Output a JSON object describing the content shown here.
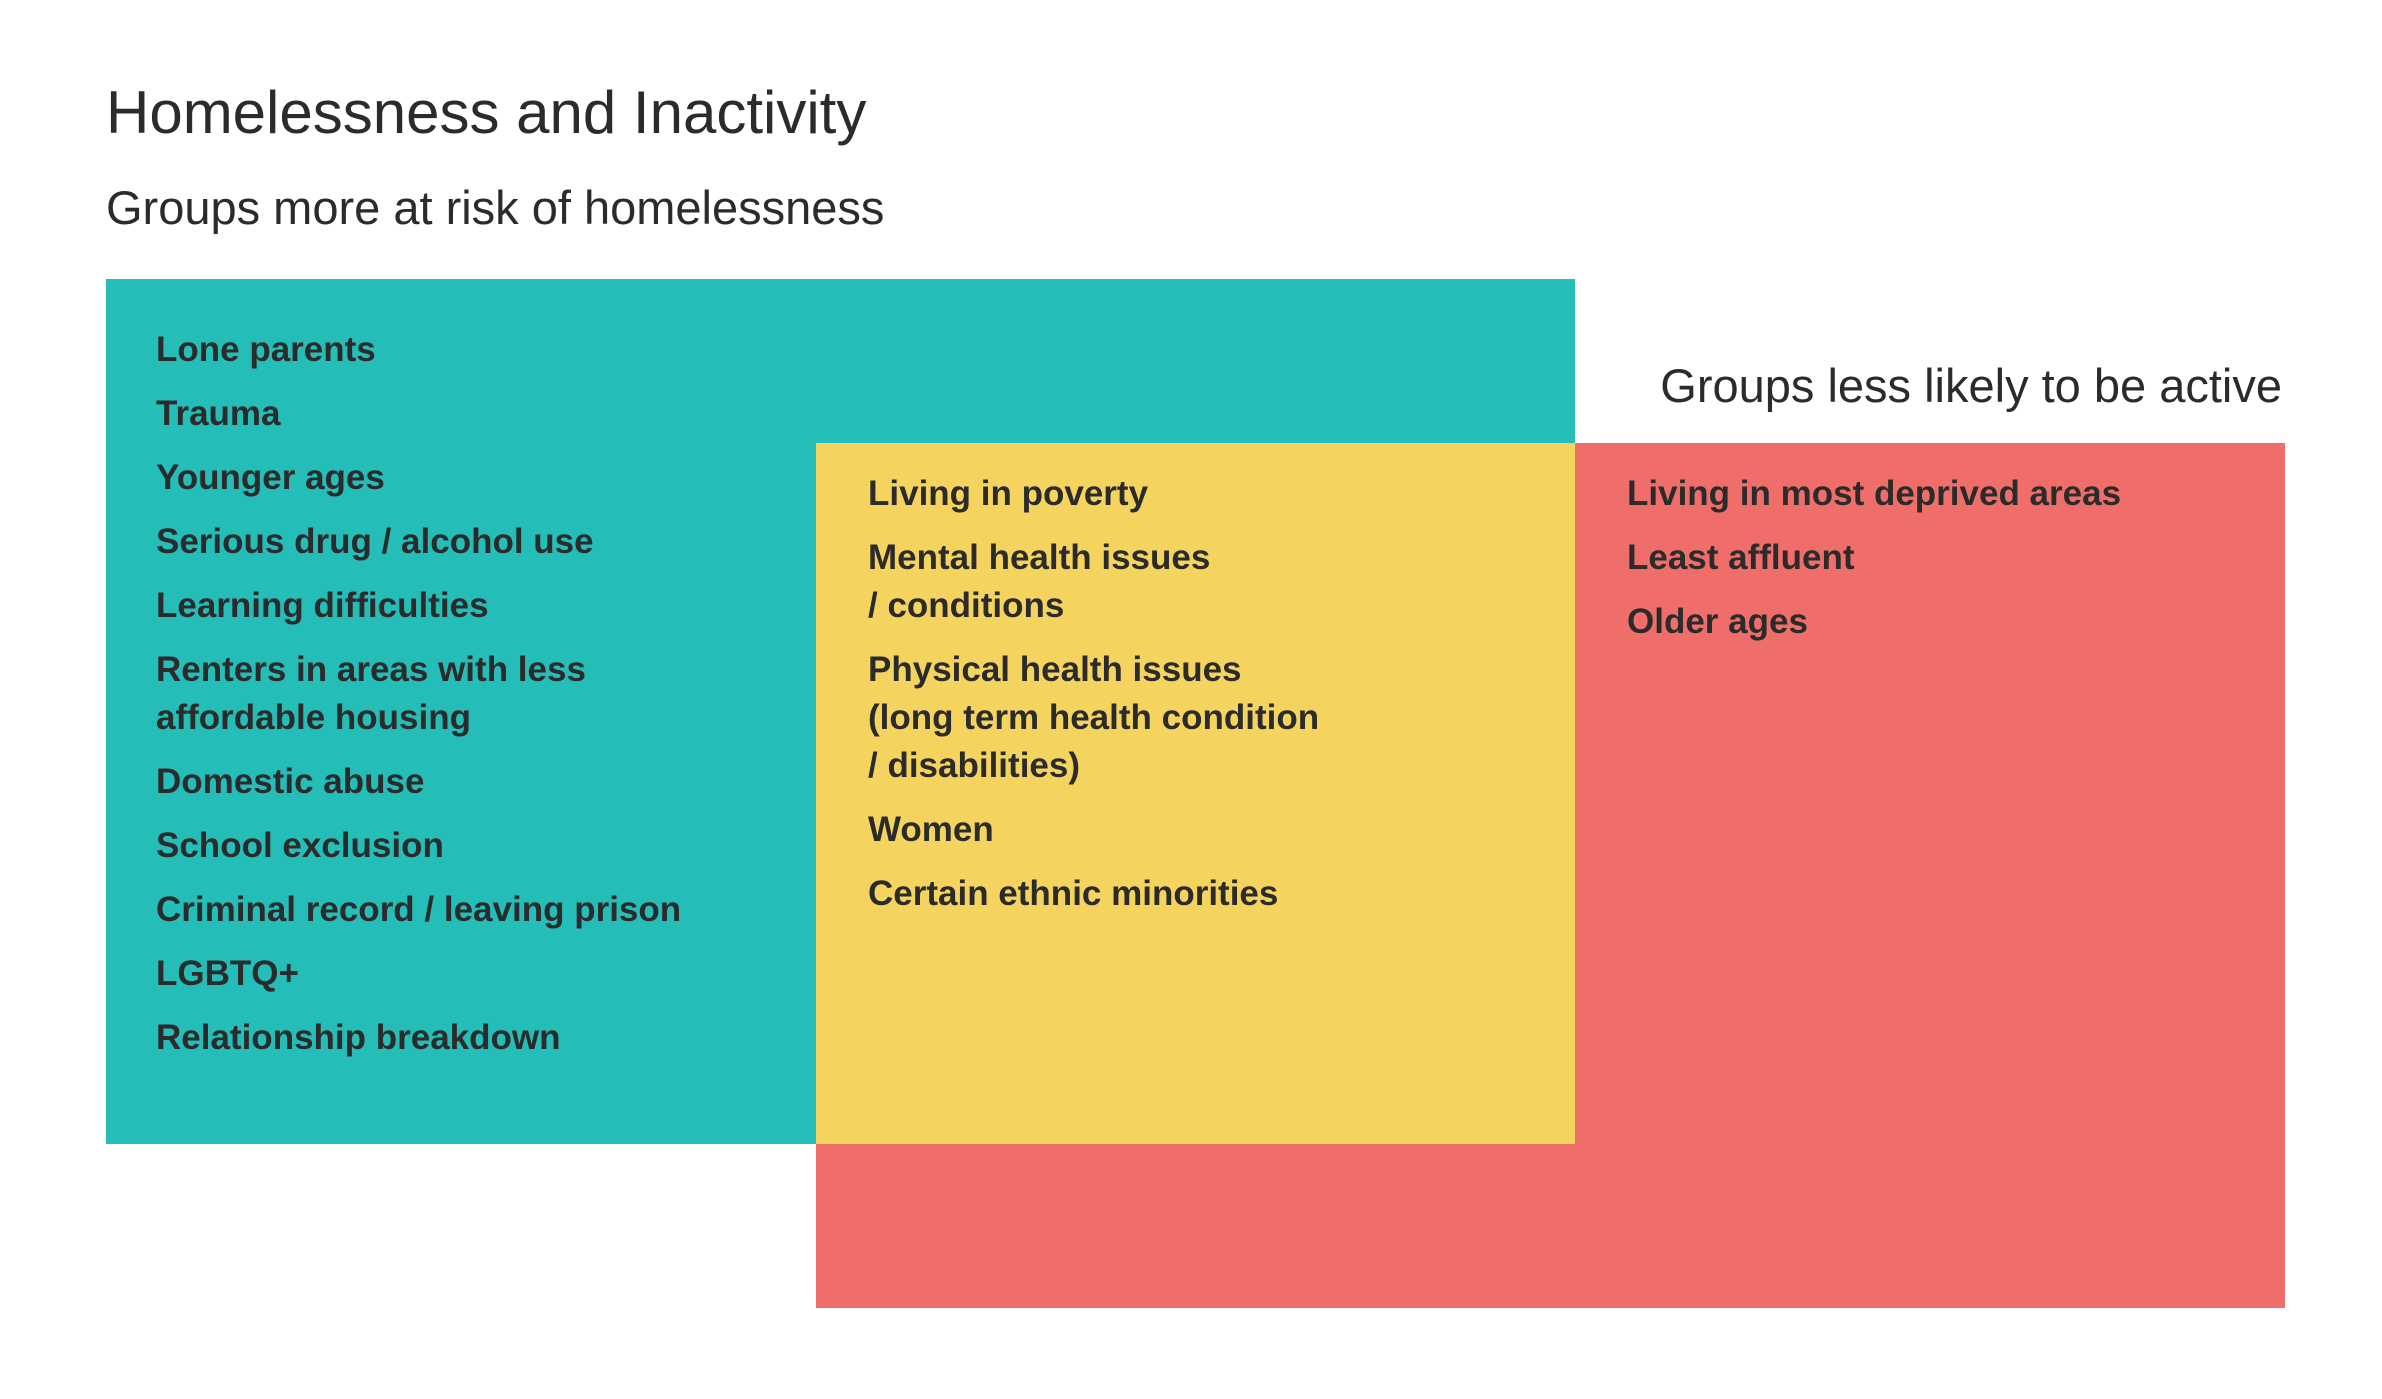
{
  "title": "Homelessness and Inactivity",
  "colors": {
    "homelessness": "#24bdb8",
    "overlap": "#f5d35f",
    "inactivity": "#f06e6a",
    "text": "#2b2b2b"
  },
  "homelessness": {
    "heading": "Groups more at risk of homelessness",
    "items": [
      "Lone parents",
      "Trauma",
      "Younger ages",
      "Serious drug / alcohol use",
      "Learning difficulties",
      "Renters in areas with less\naffordable housing",
      "Domestic abuse",
      "School exclusion",
      "Criminal record / leaving prison",
      "LGBTQ+",
      "Relationship breakdown"
    ]
  },
  "overlap": {
    "items": [
      "Living in poverty",
      "Mental health issues\n/ conditions",
      "Physical health issues\n(long term health condition\n/ disabilities)",
      "Women",
      "Certain ethnic minorities"
    ]
  },
  "inactivity": {
    "heading": "Groups less likely to be active",
    "items": [
      "Living in most deprived areas",
      "Least affluent",
      "Older ages"
    ]
  }
}
